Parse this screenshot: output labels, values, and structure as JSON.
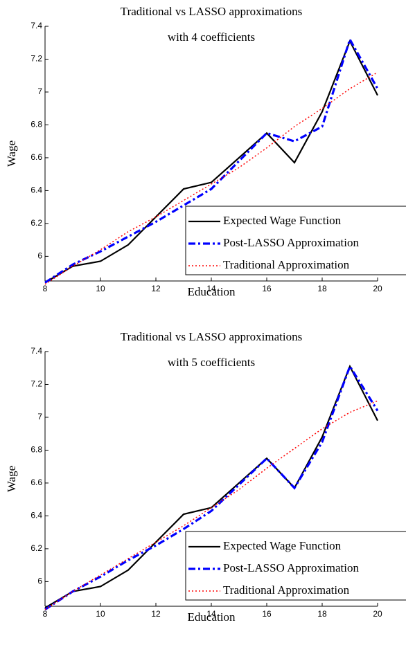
{
  "chart_data": [
    {
      "type": "line",
      "title": [
        "Traditional vs LASSO approximations",
        "with 4 coefficients"
      ],
      "xlabel": "Education",
      "ylabel": "Wage",
      "x": [
        8,
        9,
        10,
        11,
        12,
        13,
        14,
        15,
        16,
        17,
        18,
        19,
        20
      ],
      "series": [
        {
          "name": "Expected Wage Function",
          "color": "#000000",
          "style": "solid",
          "values": [
            5.84,
            5.94,
            5.97,
            6.07,
            6.24,
            6.41,
            6.45,
            6.6,
            6.75,
            6.57,
            6.88,
            7.31,
            6.98
          ]
        },
        {
          "name": "Post-LASSO Approximation",
          "color": "#0000ff",
          "style": "dashdot",
          "values": [
            5.84,
            5.95,
            6.03,
            6.12,
            6.21,
            6.31,
            6.41,
            6.58,
            6.75,
            6.7,
            6.79,
            7.32,
            7.02
          ]
        },
        {
          "name": "Traditional Approximation",
          "color": "#ff0000",
          "style": "dotted",
          "values": [
            5.83,
            5.94,
            6.04,
            6.15,
            6.24,
            6.34,
            6.44,
            6.54,
            6.66,
            6.79,
            6.9,
            7.02,
            7.12
          ]
        }
      ],
      "xlim": [
        8,
        20
      ],
      "xticks": [
        8,
        10,
        12,
        14,
        16,
        18,
        20
      ],
      "ylim": [
        5.85,
        7.4
      ],
      "yticks": [
        6,
        6.2,
        6.4,
        6.6,
        6.8,
        7,
        7.2,
        7.4
      ],
      "legend": "lower right"
    },
    {
      "type": "line",
      "title": [
        "Traditional vs LASSO approximations",
        "with 5 coefficients"
      ],
      "xlabel": "Education",
      "ylabel": "Wage",
      "x": [
        8,
        9,
        10,
        11,
        12,
        13,
        14,
        15,
        16,
        17,
        18,
        19,
        20
      ],
      "series": [
        {
          "name": "Expected Wage Function",
          "color": "#000000",
          "style": "solid",
          "values": [
            5.84,
            5.94,
            5.97,
            6.07,
            6.24,
            6.41,
            6.45,
            6.6,
            6.75,
            6.57,
            6.88,
            7.31,
            6.98
          ]
        },
        {
          "name": "Post-LASSO Approximation",
          "color": "#0000ff",
          "style": "dashdot",
          "values": [
            5.83,
            5.94,
            6.03,
            6.13,
            6.22,
            6.32,
            6.43,
            6.59,
            6.75,
            6.57,
            6.85,
            7.31,
            7.04
          ]
        },
        {
          "name": "Traditional Approximation",
          "color": "#ff0000",
          "style": "dotted",
          "values": [
            5.83,
            5.94,
            6.04,
            6.14,
            6.24,
            6.34,
            6.45,
            6.56,
            6.69,
            6.81,
            6.93,
            7.03,
            7.1
          ]
        }
      ],
      "xlim": [
        8,
        20
      ],
      "xticks": [
        8,
        10,
        12,
        14,
        16,
        18,
        20
      ],
      "ylim": [
        5.85,
        7.4
      ],
      "yticks": [
        6,
        6.2,
        6.4,
        6.6,
        6.8,
        7,
        7.2,
        7.4
      ],
      "legend": "lower right"
    }
  ]
}
